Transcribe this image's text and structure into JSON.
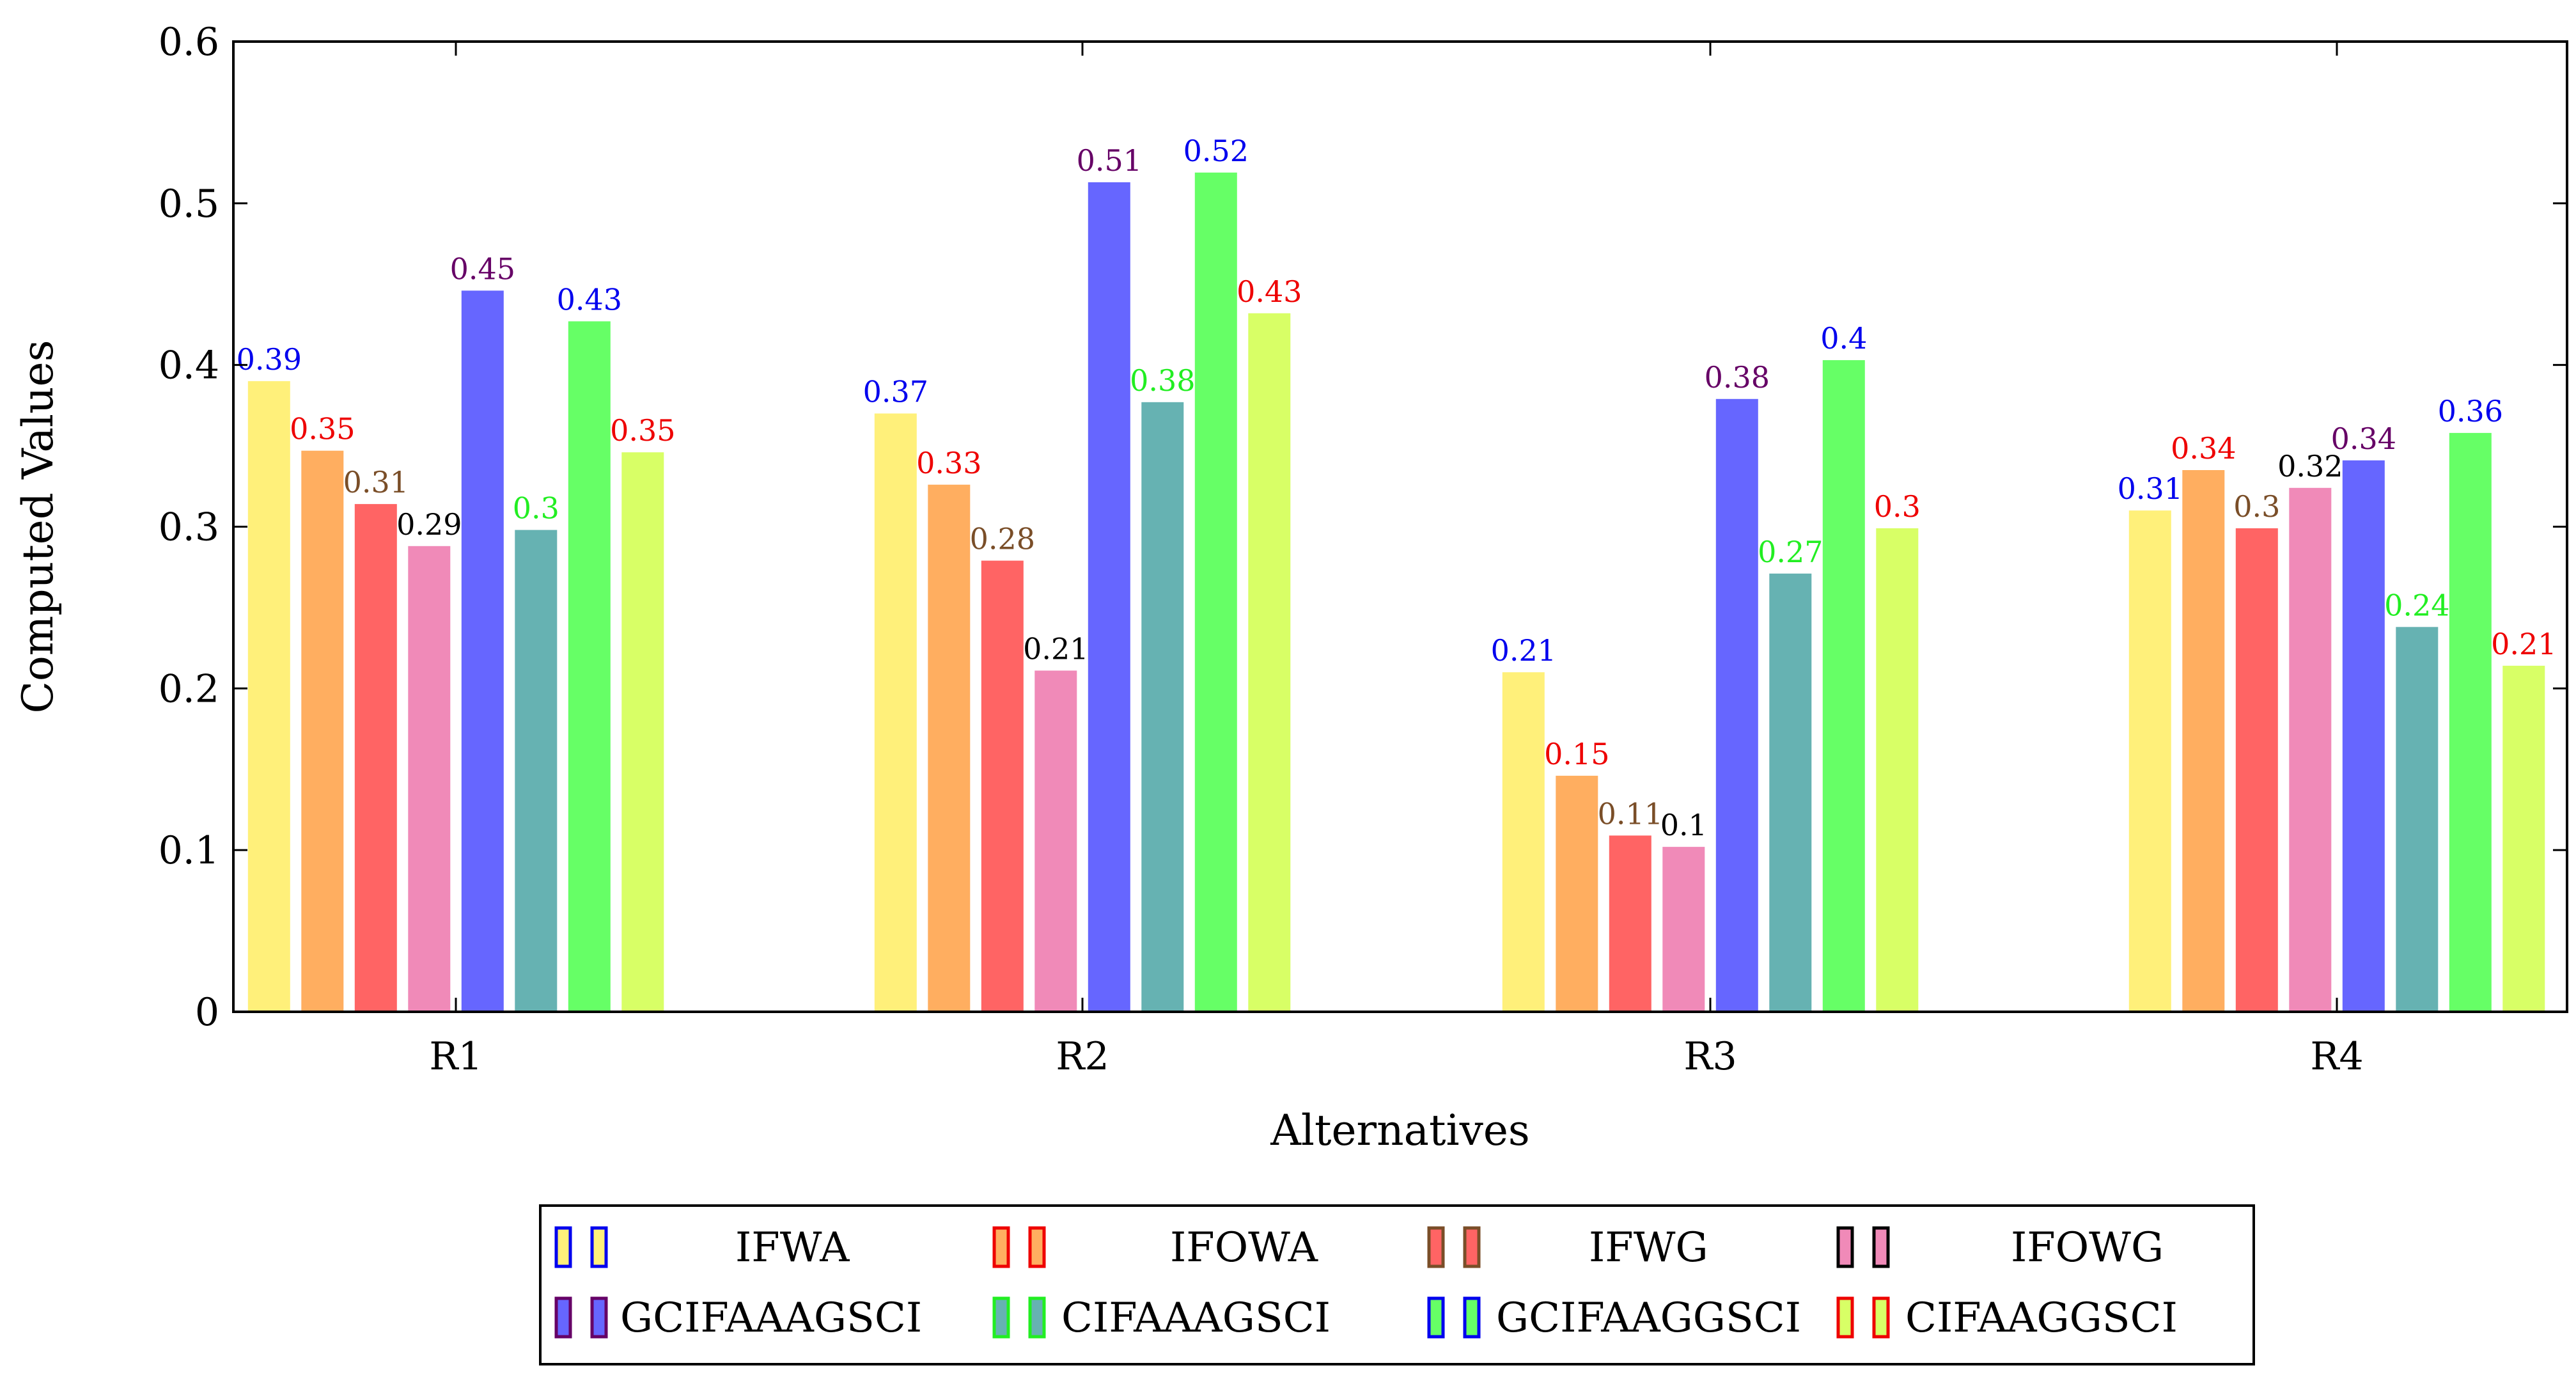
{
  "chart_data": {
    "type": "bar",
    "xlabel": "Alternatives",
    "ylabel": "Computed Values",
    "ylim": [
      0,
      0.6
    ],
    "yticks": [
      "0",
      "0.1",
      "0.2",
      "0.3",
      "0.4",
      "0.5",
      "0.6"
    ],
    "ytick_values": [
      0,
      0.1,
      0.2,
      0.3,
      0.4,
      0.5,
      0.6
    ],
    "categories": [
      "R1",
      "R2",
      "R3",
      "R4"
    ],
    "grid": false,
    "legend_position": "bottom",
    "series": [
      {
        "name": "IFWA",
        "color": "#fff07a",
        "label_color": "#0000ee",
        "swatch_border": "#0000ee",
        "values": [
          0.39,
          0.37,
          0.21,
          0.31
        ],
        "labels": [
          "0.39",
          "0.37",
          "0.21",
          "0.31"
        ]
      },
      {
        "name": "IFOWA",
        "color": "#ffae60",
        "label_color": "#ee0000",
        "swatch_border": "#ee0000",
        "values": [
          0.347,
          0.326,
          0.146,
          0.335
        ],
        "labels": [
          "0.35",
          "0.33",
          "0.15",
          "0.34"
        ]
      },
      {
        "name": "IFWG",
        "color": "#ff6464",
        "label_color": "#7a4e28",
        "swatch_border": "#7a4e28",
        "values": [
          0.314,
          0.279,
          0.109,
          0.299
        ],
        "labels": [
          "0.31",
          "0.28",
          "0.11",
          "0.3"
        ]
      },
      {
        "name": "IFOWG",
        "color": "#f08ab8",
        "label_color": "#000000",
        "swatch_border": "#000000",
        "values": [
          0.288,
          0.211,
          0.102,
          0.324
        ],
        "labels": [
          "0.29",
          "0.21",
          "0.1",
          "0.32"
        ]
      },
      {
        "name": "GCIFAAAGSCI",
        "color": "#6666ff",
        "label_color": "#660066",
        "swatch_border": "#660066",
        "values": [
          0.446,
          0.513,
          0.379,
          0.341
        ],
        "labels": [
          "0.45",
          "0.51",
          "0.38",
          "0.34"
        ]
      },
      {
        "name": "CIFAAAGSCI",
        "color": "#66b2b2",
        "label_color": "#22ee22",
        "swatch_border": "#22ee22",
        "values": [
          0.298,
          0.377,
          0.271,
          0.238
        ],
        "labels": [
          "0.3",
          "0.38",
          "0.27",
          "0.24"
        ]
      },
      {
        "name": "GCIFAAGGSCI",
        "color": "#66ff66",
        "label_color": "#0000ee",
        "swatch_border": "#0000ee",
        "values": [
          0.427,
          0.519,
          0.403,
          0.358
        ],
        "labels": [
          "0.43",
          "0.52",
          "0.4",
          "0.36"
        ]
      },
      {
        "name": "CIFAAGGSCI",
        "color": "#d8ff66",
        "label_color": "#ee0000",
        "swatch_border": "#ee0000",
        "values": [
          0.346,
          0.432,
          0.299,
          0.214
        ],
        "labels": [
          "0.35",
          "0.43",
          "0.3",
          "0.21"
        ]
      }
    ]
  }
}
